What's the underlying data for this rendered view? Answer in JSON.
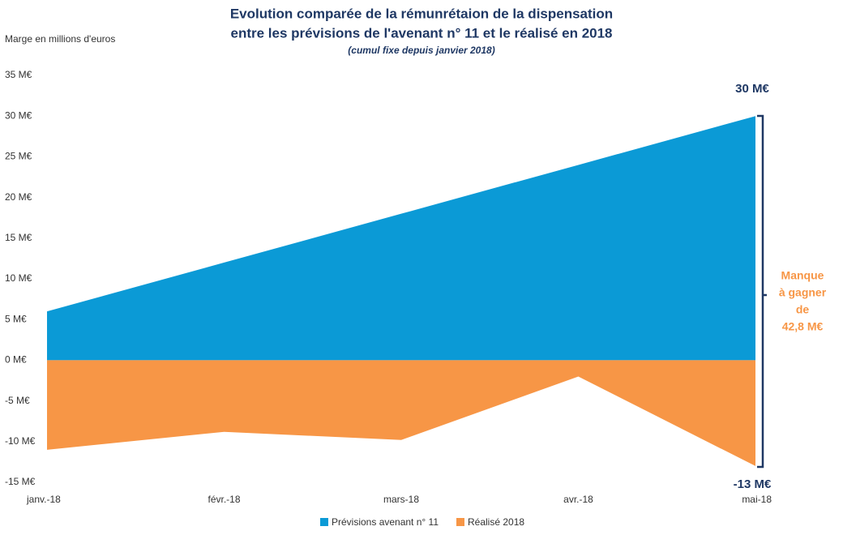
{
  "chart_data": {
    "type": "area",
    "title": [
      "Evolution comparée de la rémunrétaion de la dispensation",
      "entre les prévisions de l'avenant n° 11 et le réalisé en 2018"
    ],
    "subtitle": "(cumul fixe depuis janvier 2018)",
    "y_label": "Marge en millions d'euros",
    "categories": [
      "janv.-18",
      "févr.-18",
      "mars-18",
      "avr.-18",
      "mai-18"
    ],
    "series": [
      {
        "name": "Prévisions avenant n° 11",
        "color": "#0b9ad6",
        "values": [
          6,
          12,
          18,
          24,
          30
        ]
      },
      {
        "name": "Réalisé 2018",
        "color": "#f79646",
        "values": [
          -11,
          -8.8,
          -9.8,
          -2,
          -13
        ]
      }
    ],
    "ylim": [
      -15,
      35
    ],
    "yticks": [
      {
        "value": -15,
        "label": "-15 M€"
      },
      {
        "value": -10,
        "label": "-10 M€"
      },
      {
        "value": -5,
        "label": "-5 M€"
      },
      {
        "value": 0,
        "label": "0 M€"
      },
      {
        "value": 5,
        "label": "5 M€"
      },
      {
        "value": 10,
        "label": "10 M€"
      },
      {
        "value": 15,
        "label": "15 M€"
      },
      {
        "value": 20,
        "label": "20 M€"
      },
      {
        "value": 25,
        "label": "25 M€"
      },
      {
        "value": 30,
        "label": "30 M€"
      },
      {
        "value": 35,
        "label": "35 M€"
      }
    ],
    "top_label": "30 M€",
    "bottom_label": "-13 M€",
    "gap_label": [
      "Manque",
      "à gagner",
      "de",
      "42,8 M€"
    ],
    "legend": "bottom"
  }
}
